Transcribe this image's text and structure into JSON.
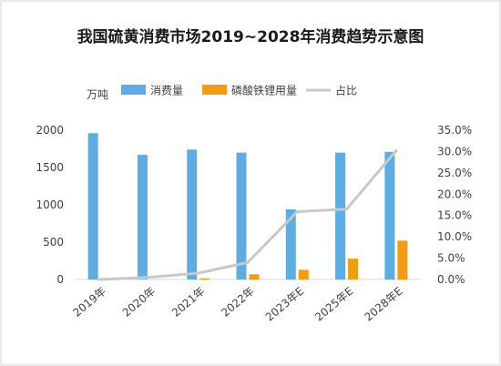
{
  "chart_data": {
    "type": "bar",
    "title": "我国硫黄消费市场2019~2028年消费趋势示意图",
    "y_unit": "万吨",
    "categories": [
      "2019年",
      "2020年",
      "2021年",
      "2022年",
      "2023年E",
      "2025年E",
      "2028年E"
    ],
    "series": [
      {
        "name": "消费量",
        "type": "bar",
        "axis": "left",
        "color": "#5dade2",
        "values": [
          1960,
          1670,
          1740,
          1700,
          940,
          1700,
          1710
        ]
      },
      {
        "name": "磷酸铁锂用量",
        "type": "bar",
        "axis": "left",
        "color": "#f39c12",
        "values": [
          0,
          0,
          15,
          70,
          130,
          280,
          520
        ]
      },
      {
        "name": "占比",
        "type": "line",
        "axis": "right",
        "color": "#c8c8c8",
        "values": [
          0.0,
          0.5,
          1.5,
          4.0,
          15.9,
          16.5,
          30.2
        ]
      }
    ],
    "ylim_left": [
      0,
      2000
    ],
    "yticks_left": [
      "0",
      "500",
      "1000",
      "1500",
      "2000"
    ],
    "ylim_right": [
      0,
      35
    ],
    "yticks_right": [
      "0.0%",
      "5.0%",
      "10.0%",
      "15.0%",
      "20.0%",
      "25.0%",
      "30.0%",
      "35.0%"
    ],
    "legend_position": "top",
    "grid": false
  }
}
